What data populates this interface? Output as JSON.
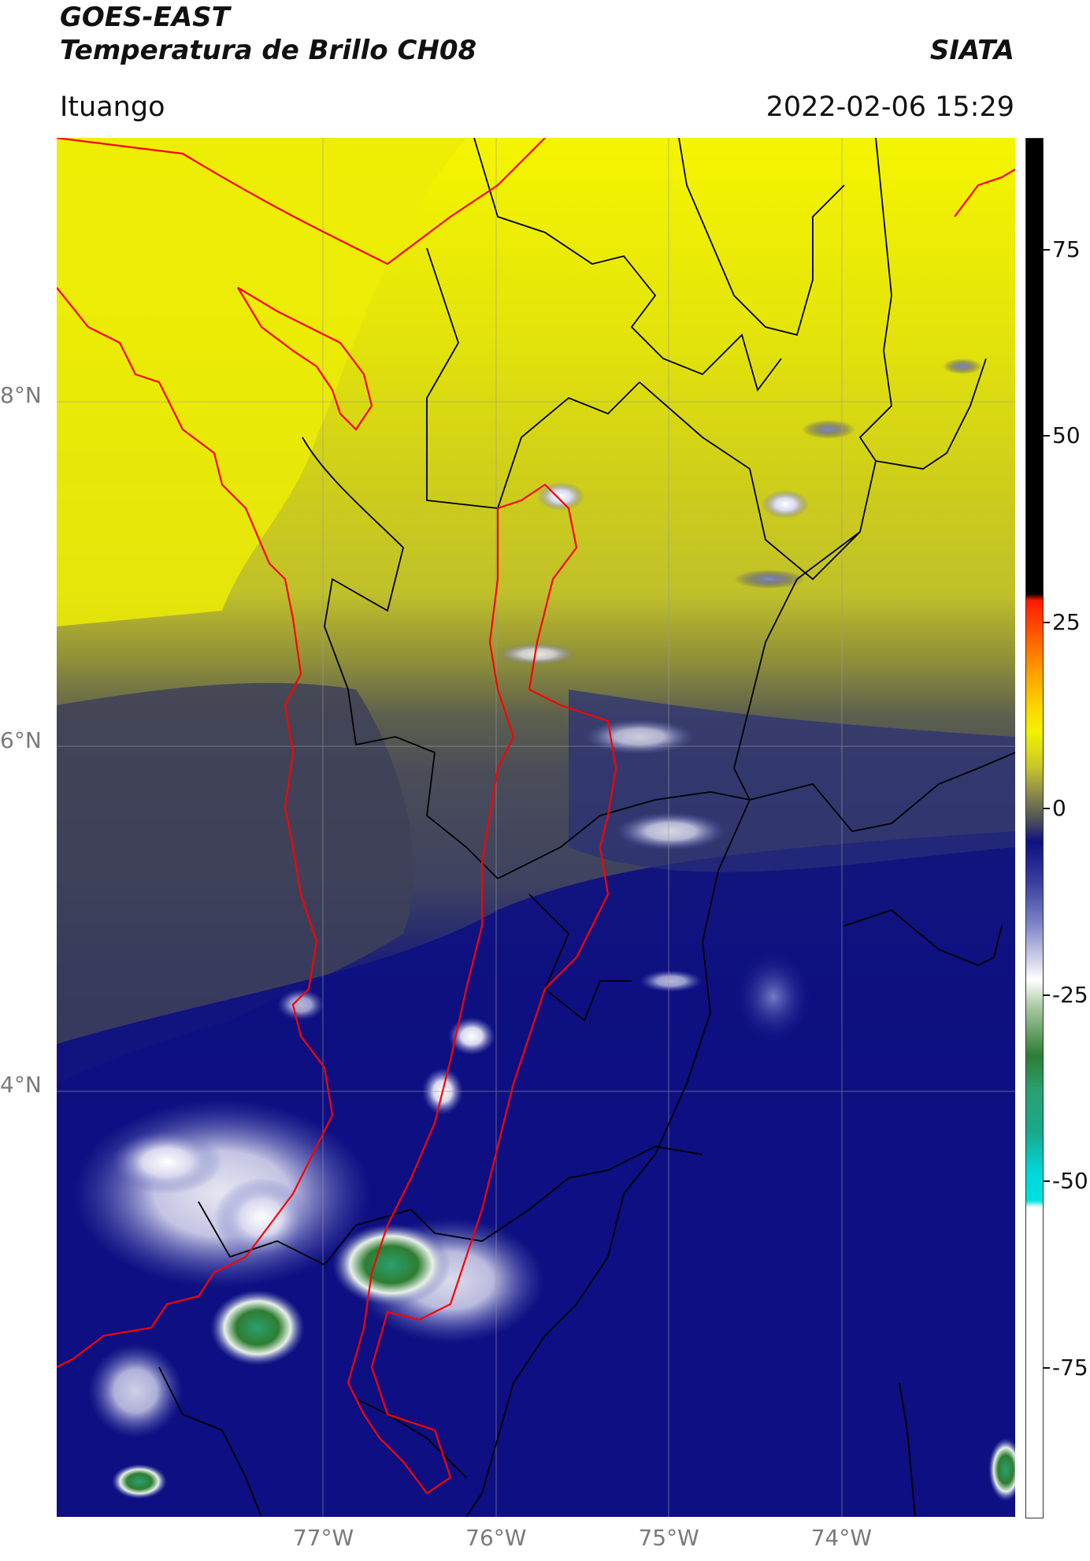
{
  "header": {
    "title_line1": "GOES-EAST",
    "title_line2": "Temperatura de Brillo CH08",
    "org": "SIATA",
    "location": "Ituango",
    "timestamp": "2022-02-06 15:29"
  },
  "map": {
    "lon_range": [
      -78.55,
      -73.0
    ],
    "lat_range": [
      1.5,
      9.5
    ],
    "lon_ticks": [
      "77°W",
      "76°W",
      "75°W",
      "74°W"
    ],
    "lat_ticks": [
      "8°N",
      "6°N",
      "4°N"
    ],
    "gridlines": true
  },
  "colorbar": {
    "range": [
      -95,
      90
    ],
    "ticks": [
      "75",
      "50",
      "25",
      "0",
      "-25",
      "-50",
      "-75"
    ],
    "tick_values": [
      75,
      50,
      25,
      0,
      -25,
      -50,
      -75
    ],
    "colors": {
      "black": "#000000",
      "red": "#ff1a00",
      "orange": "#ff9a00",
      "yellow": "#f2f200",
      "olive": "#c8c82a",
      "slate": "#3c3f5a",
      "navy": "#0d1082",
      "periwinkle": "#5c62b8",
      "white": "#f4f4f6",
      "green": "#2e7d32",
      "teal": "#1aa88a",
      "cyan": "#00e0e0"
    }
  },
  "legend_colors": {
    "department_boundary": "#000000",
    "region_outline": "#ff0000"
  }
}
